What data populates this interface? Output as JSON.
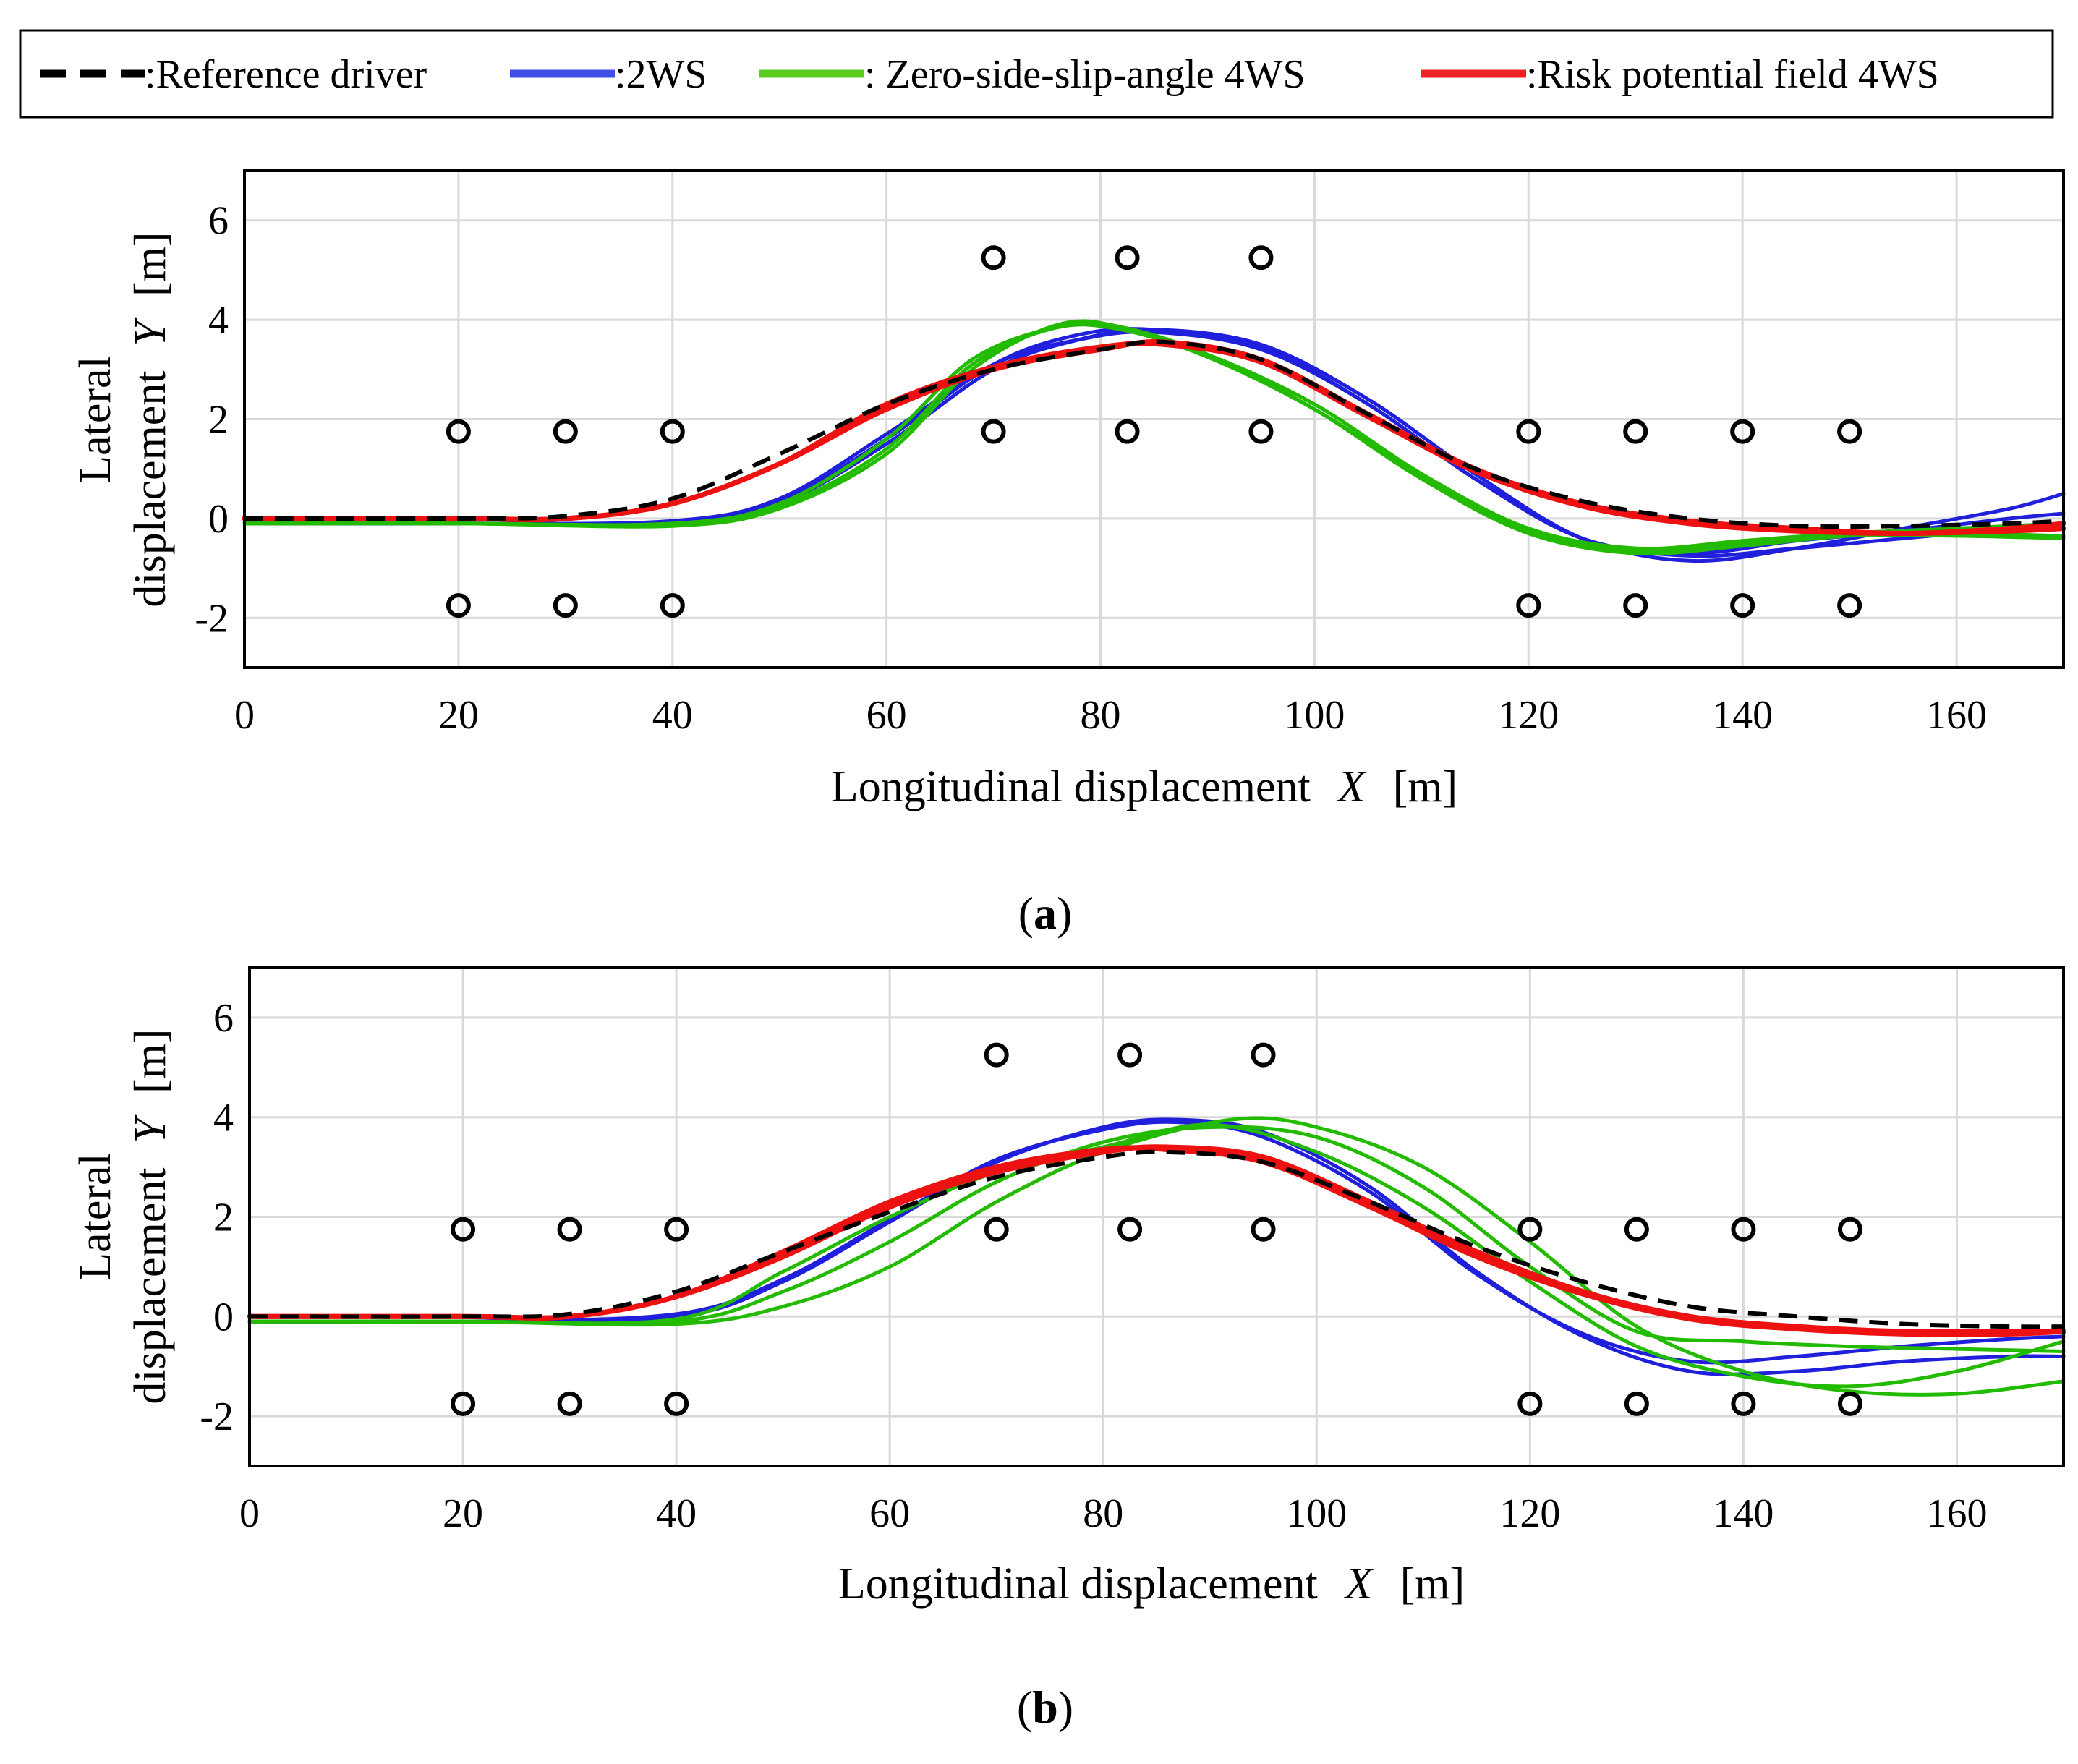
{
  "legend": {
    "entries": [
      {
        "key": "ref",
        "label": ":Reference driver",
        "color": "#000000",
        "dash": true
      },
      {
        "key": "ws2",
        "label": ":2WS",
        "color": "#1f1fdc",
        "dash": false
      },
      {
        "key": "zss",
        "label": ": Zero-side-slip-angle 4WS",
        "color": "#22bb00",
        "dash": false
      },
      {
        "key": "rpf",
        "label": ":Risk potential field 4WS",
        "color": "#ee1111",
        "dash": false
      }
    ]
  },
  "chart_data": [
    {
      "type": "line",
      "panel": "a",
      "caption": {
        "open": "(",
        "letter": "a",
        "close": ")"
      },
      "xlabel": {
        "text": "Longitudinal displacement",
        "var": "X",
        "unit": "[m]"
      },
      "ylabel": {
        "line1": "Lateral",
        "line2": "displacement",
        "var": "Y",
        "unit": "[m]"
      },
      "xlim": [
        0,
        170
      ],
      "ylim": [
        -3,
        7
      ],
      "xticks": [
        0,
        20,
        40,
        60,
        80,
        100,
        120,
        140,
        160
      ],
      "yticks": [
        -2,
        0,
        2,
        4,
        6
      ],
      "grid": true,
      "obstacles": [
        [
          20,
          1.75
        ],
        [
          30,
          1.75
        ],
        [
          40,
          1.75
        ],
        [
          20,
          -1.75
        ],
        [
          30,
          -1.75
        ],
        [
          40,
          -1.75
        ],
        [
          70,
          5.25
        ],
        [
          82.5,
          5.25
        ],
        [
          95,
          5.25
        ],
        [
          70,
          1.75
        ],
        [
          82.5,
          1.75
        ],
        [
          95,
          1.75
        ],
        [
          120,
          1.75
        ],
        [
          130,
          1.75
        ],
        [
          140,
          1.75
        ],
        [
          150,
          1.75
        ],
        [
          120,
          -1.75
        ],
        [
          130,
          -1.75
        ],
        [
          140,
          -1.75
        ],
        [
          150,
          -1.75
        ]
      ],
      "series": [
        {
          "name": "2WS",
          "key": "ws2",
          "x": [
            0,
            20,
            40,
            50,
            60,
            70,
            78,
            85,
            95,
            105,
            115,
            125,
            135,
            145,
            155,
            165,
            170
          ],
          "y": [
            -0.1,
            -0.1,
            -0.1,
            0.3,
            1.5,
            3.0,
            3.6,
            3.8,
            3.5,
            2.4,
            0.9,
            -0.4,
            -0.85,
            -0.6,
            -0.2,
            0.2,
            0.5
          ]
        },
        {
          "name": "2WS",
          "key": "ws2",
          "x": [
            0,
            20,
            40,
            50,
            60,
            70,
            78,
            85,
            95,
            105,
            115,
            125,
            135,
            145,
            155,
            165,
            170
          ],
          "y": [
            -0.1,
            -0.1,
            -0.05,
            0.4,
            1.7,
            3.1,
            3.6,
            3.75,
            3.4,
            2.3,
            0.8,
            -0.4,
            -0.7,
            -0.45,
            -0.25,
            0,
            0.1
          ]
        },
        {
          "name": "2WS",
          "key": "ws2",
          "x": [
            0,
            20,
            40,
            50,
            60,
            70,
            78,
            85,
            95,
            105,
            115,
            125,
            135,
            145,
            155,
            165,
            170
          ],
          "y": [
            -0.1,
            -0.1,
            -0.1,
            0.35,
            1.6,
            3.1,
            3.7,
            3.8,
            3.45,
            2.3,
            0.8,
            -0.4,
            -0.75,
            -0.6,
            -0.4,
            -0.2,
            -0.1
          ]
        },
        {
          "name": "Zero-side-slip-angle 4WS",
          "key": "zss",
          "x": [
            0,
            20,
            40,
            50,
            60,
            68,
            76,
            82,
            90,
            100,
            110,
            120,
            130,
            140,
            150,
            160,
            170
          ],
          "y": [
            -0.1,
            -0.1,
            -0.15,
            0.2,
            1.3,
            3.0,
            3.9,
            3.85,
            3.3,
            2.2,
            0.8,
            -0.3,
            -0.7,
            -0.55,
            -0.35,
            -0.35,
            -0.4
          ]
        },
        {
          "name": "Zero-side-slip-angle 4WS",
          "key": "zss",
          "x": [
            0,
            20,
            40,
            50,
            60,
            68,
            76,
            82,
            90,
            100,
            110,
            120,
            130,
            140,
            150,
            160,
            170
          ],
          "y": [
            -0.1,
            -0.1,
            -0.1,
            0.3,
            1.6,
            3.2,
            3.85,
            3.8,
            3.3,
            2.3,
            0.9,
            -0.2,
            -0.6,
            -0.45,
            -0.3,
            -0.3,
            -0.35
          ]
        },
        {
          "name": "Zero-side-slip-angle 4WS",
          "key": "zss",
          "x": [
            0,
            20,
            40,
            50,
            60,
            68,
            76,
            82,
            90,
            100,
            110,
            120,
            130,
            140,
            150,
            160,
            170
          ],
          "y": [
            -0.1,
            -0.1,
            -0.12,
            0.25,
            1.4,
            3.1,
            3.85,
            3.8,
            3.25,
            2.2,
            0.85,
            -0.25,
            -0.65,
            -0.5,
            -0.3,
            -0.2,
            -0.1
          ]
        },
        {
          "name": "Risk potential field 4WS",
          "key": "rpf",
          "x": [
            0,
            20,
            30,
            40,
            50,
            60,
            70,
            80,
            86,
            95,
            105,
            115,
            125,
            135,
            145,
            155,
            165,
            170
          ],
          "y": [
            0,
            0,
            0,
            0.3,
            1.1,
            2.2,
            3.0,
            3.4,
            3.55,
            3.2,
            2.1,
            1.0,
            0.3,
            -0.05,
            -0.2,
            -0.3,
            -0.2,
            -0.1
          ]
        },
        {
          "name": "Risk potential field 4WS",
          "key": "rpf",
          "x": [
            0,
            20,
            30,
            40,
            50,
            60,
            70,
            80,
            86,
            95,
            105,
            115,
            125,
            135,
            145,
            155,
            165,
            170
          ],
          "y": [
            0,
            0,
            0,
            0.3,
            1.1,
            2.3,
            3.05,
            3.45,
            3.5,
            3.15,
            2.05,
            0.95,
            0.25,
            -0.1,
            -0.25,
            -0.3,
            -0.25,
            -0.2
          ]
        },
        {
          "name": "Reference driver",
          "key": "ref",
          "x": [
            0,
            20,
            30,
            40,
            50,
            60,
            70,
            80,
            86,
            95,
            105,
            115,
            125,
            135,
            145,
            155,
            165,
            170
          ],
          "y": [
            0,
            0,
            0.05,
            0.4,
            1.3,
            2.3,
            3.0,
            3.4,
            3.55,
            3.2,
            2.1,
            1.0,
            0.35,
            0,
            -0.15,
            -0.15,
            -0.1,
            -0.05
          ]
        }
      ]
    },
    {
      "type": "line",
      "panel": "b",
      "caption": {
        "open": "(",
        "letter": "b",
        "close": ")"
      },
      "xlabel": {
        "text": "Longitudinal displacement",
        "var": "X",
        "unit": "[m]"
      },
      "ylabel": {
        "line1": "Lateral",
        "line2": "displacement",
        "var": "Y",
        "unit": "[m]"
      },
      "xlim": [
        0,
        170
      ],
      "ylim": [
        -3,
        7
      ],
      "xticks": [
        0,
        20,
        40,
        60,
        80,
        100,
        120,
        140,
        160
      ],
      "yticks": [
        -2,
        0,
        2,
        4,
        6
      ],
      "grid": true,
      "obstacles": [
        [
          20,
          1.75
        ],
        [
          30,
          1.75
        ],
        [
          40,
          1.75
        ],
        [
          20,
          -1.75
        ],
        [
          30,
          -1.75
        ],
        [
          40,
          -1.75
        ],
        [
          70,
          5.25
        ],
        [
          82.5,
          5.25
        ],
        [
          95,
          5.25
        ],
        [
          70,
          1.75
        ],
        [
          82.5,
          1.75
        ],
        [
          95,
          1.75
        ],
        [
          120,
          1.75
        ],
        [
          130,
          1.75
        ],
        [
          140,
          1.75
        ],
        [
          150,
          1.75
        ],
        [
          120,
          -1.75
        ],
        [
          130,
          -1.75
        ],
        [
          140,
          -1.75
        ],
        [
          150,
          -1.75
        ]
      ],
      "series": [
        {
          "name": "2WS",
          "key": "ws2",
          "x": [
            0,
            20,
            40,
            50,
            60,
            70,
            80,
            87,
            95,
            105,
            115,
            125,
            135,
            145,
            155,
            165,
            170
          ],
          "y": [
            -0.1,
            -0.1,
            0,
            0.7,
            1.9,
            3.1,
            3.8,
            3.95,
            3.7,
            2.6,
            0.9,
            -0.4,
            -1.1,
            -1.1,
            -0.9,
            -0.8,
            -0.8
          ]
        },
        {
          "name": "2WS",
          "key": "ws2",
          "x": [
            0,
            20,
            40,
            50,
            60,
            70,
            80,
            87,
            95,
            105,
            115,
            125,
            135,
            145,
            155,
            165,
            170
          ],
          "y": [
            -0.1,
            -0.1,
            0.05,
            0.75,
            1.95,
            3.15,
            3.75,
            3.9,
            3.6,
            2.5,
            0.85,
            -0.35,
            -0.9,
            -0.8,
            -0.6,
            -0.45,
            -0.4
          ]
        },
        {
          "name": "Zero-side-slip-angle 4WS",
          "key": "zss",
          "x": [
            0,
            20,
            40,
            50,
            60,
            70,
            80,
            90,
            100,
            110,
            120,
            130,
            140,
            150,
            160,
            170
          ],
          "y": [
            -0.1,
            -0.1,
            -0.05,
            0.9,
            2.0,
            2.9,
            3.4,
            3.85,
            3.3,
            2.2,
            0.7,
            -0.6,
            -1.2,
            -1.4,
            -1.1,
            -0.5
          ]
        },
        {
          "name": "Zero-side-slip-angle 4WS",
          "key": "zss",
          "x": [
            0,
            20,
            40,
            50,
            60,
            70,
            80,
            90,
            100,
            110,
            120,
            130,
            140,
            150,
            160,
            170
          ],
          "y": [
            -0.1,
            -0.1,
            -0.1,
            0.5,
            1.5,
            2.7,
            3.5,
            3.8,
            3.6,
            2.6,
            1.0,
            -0.3,
            -0.5,
            -0.6,
            -0.65,
            -0.7
          ]
        },
        {
          "name": "Zero-side-slip-angle 4WS",
          "key": "zss",
          "x": [
            0,
            20,
            40,
            50,
            60,
            70,
            80,
            92,
            100,
            110,
            120,
            130,
            140,
            150,
            160,
            170
          ],
          "y": [
            -0.1,
            -0.1,
            -0.15,
            0.2,
            1.0,
            2.3,
            3.3,
            3.95,
            3.8,
            3.0,
            1.5,
            -0.2,
            -1.1,
            -1.5,
            -1.55,
            -1.3
          ]
        },
        {
          "name": "Risk potential field 4WS",
          "key": "rpf",
          "x": [
            0,
            20,
            30,
            40,
            50,
            60,
            70,
            80,
            86,
            95,
            105,
            115,
            125,
            135,
            145,
            155,
            165,
            170
          ],
          "y": [
            0,
            0,
            0,
            0.4,
            1.2,
            2.2,
            2.9,
            3.3,
            3.4,
            3.2,
            2.3,
            1.3,
            0.5,
            0,
            -0.2,
            -0.3,
            -0.3,
            -0.3
          ]
        },
        {
          "name": "Risk potential field 4WS",
          "key": "rpf",
          "x": [
            0,
            20,
            30,
            40,
            50,
            60,
            70,
            80,
            86,
            95,
            105,
            115,
            125,
            135,
            145,
            155,
            165,
            170
          ],
          "y": [
            0,
            0,
            0,
            0.4,
            1.3,
            2.3,
            3.0,
            3.35,
            3.35,
            3.1,
            2.2,
            1.2,
            0.45,
            -0.05,
            -0.25,
            -0.35,
            -0.35,
            -0.3
          ]
        },
        {
          "name": "Reference driver",
          "key": "ref",
          "x": [
            0,
            20,
            30,
            40,
            50,
            60,
            70,
            80,
            86,
            95,
            105,
            115,
            125,
            135,
            145,
            155,
            165,
            170
          ],
          "y": [
            0,
            0,
            0.05,
            0.5,
            1.3,
            2.1,
            2.8,
            3.2,
            3.3,
            3.1,
            2.3,
            1.4,
            0.7,
            0.2,
            0,
            -0.15,
            -0.2,
            -0.2
          ]
        }
      ]
    }
  ]
}
